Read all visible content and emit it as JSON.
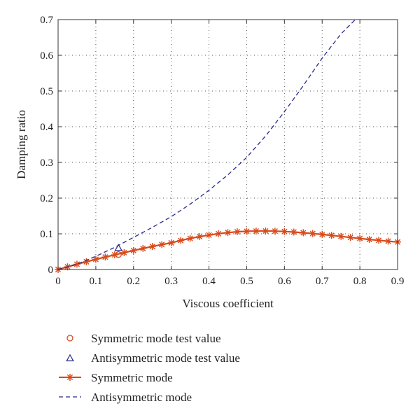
{
  "chart_data": {
    "type": "line",
    "title": "",
    "xlabel": "Viscous coefficient",
    "ylabel": "Damping ratio",
    "xlim": [
      0,
      0.9
    ],
    "ylim": [
      0,
      0.7
    ],
    "x_ticks": [
      "0",
      "0.1",
      "0.2",
      "0.3",
      "0.4",
      "0.5",
      "0.6",
      "0.7",
      "0.8",
      "0.9"
    ],
    "y_ticks": [
      "0",
      "0.1",
      "0.2",
      "0.3",
      "0.4",
      "0.5",
      "0.6",
      "0.7"
    ],
    "grid": true,
    "legend_position": "below-plot",
    "series": [
      {
        "name": "Symmetric mode",
        "style": "line-star",
        "color": "#d94a1a",
        "x": [
          0,
          0.025,
          0.05,
          0.075,
          0.1,
          0.125,
          0.15,
          0.175,
          0.2,
          0.225,
          0.25,
          0.275,
          0.3,
          0.325,
          0.35,
          0.375,
          0.4,
          0.425,
          0.45,
          0.475,
          0.5,
          0.525,
          0.55,
          0.575,
          0.6,
          0.625,
          0.65,
          0.675,
          0.7,
          0.725,
          0.75,
          0.775,
          0.8,
          0.825,
          0.85,
          0.875,
          0.9
        ],
        "y": [
          0,
          0.0075,
          0.0148,
          0.0218,
          0.0285,
          0.0349,
          0.041,
          0.0472,
          0.0532,
          0.059,
          0.0645,
          0.0698,
          0.0748,
          0.0813,
          0.087,
          0.092,
          0.0965,
          0.1003,
          0.1034,
          0.1057,
          0.107,
          0.1076,
          0.1078,
          0.1074,
          0.1064,
          0.1049,
          0.103,
          0.1007,
          0.0982,
          0.0955,
          0.0927,
          0.0898,
          0.0869,
          0.0842,
          0.0817,
          0.0793,
          0.077
        ]
      },
      {
        "name": "Antisymmetric mode",
        "style": "dashed",
        "color": "#2a2a8c",
        "x": [
          0,
          0.05,
          0.1,
          0.15,
          0.2,
          0.25,
          0.3,
          0.35,
          0.4,
          0.45,
          0.5,
          0.55,
          0.6,
          0.65,
          0.7,
          0.75,
          0.788
        ],
        "y": [
          0,
          0.015,
          0.037,
          0.062,
          0.09,
          0.118,
          0.148,
          0.183,
          0.222,
          0.265,
          0.314,
          0.374,
          0.442,
          0.515,
          0.592,
          0.66,
          0.7
        ]
      },
      {
        "name": "Symmetric mode test value",
        "style": "marker-circle",
        "color": "#d94a1a",
        "x": [
          0.16
        ],
        "y": [
          0.042
        ]
      },
      {
        "name": "Antisymmetric mode test value",
        "style": "marker-triangle",
        "color": "#2a2a8c",
        "x": [
          0.16
        ],
        "y": [
          0.06
        ]
      }
    ]
  },
  "legend": {
    "items": [
      {
        "label": "Symmetric mode test value",
        "icon": "circle-marker-icon",
        "color": "#d94a1a"
      },
      {
        "label": "Antisymmetric mode test value",
        "icon": "triangle-marker-icon",
        "color": "#2a2a8c"
      },
      {
        "label": "Symmetric mode",
        "icon": "star-line-icon",
        "color": "#d94a1a"
      },
      {
        "label": "Antisymmetric mode",
        "icon": "dashed-line-icon",
        "color": "#2a2a8c"
      }
    ]
  }
}
